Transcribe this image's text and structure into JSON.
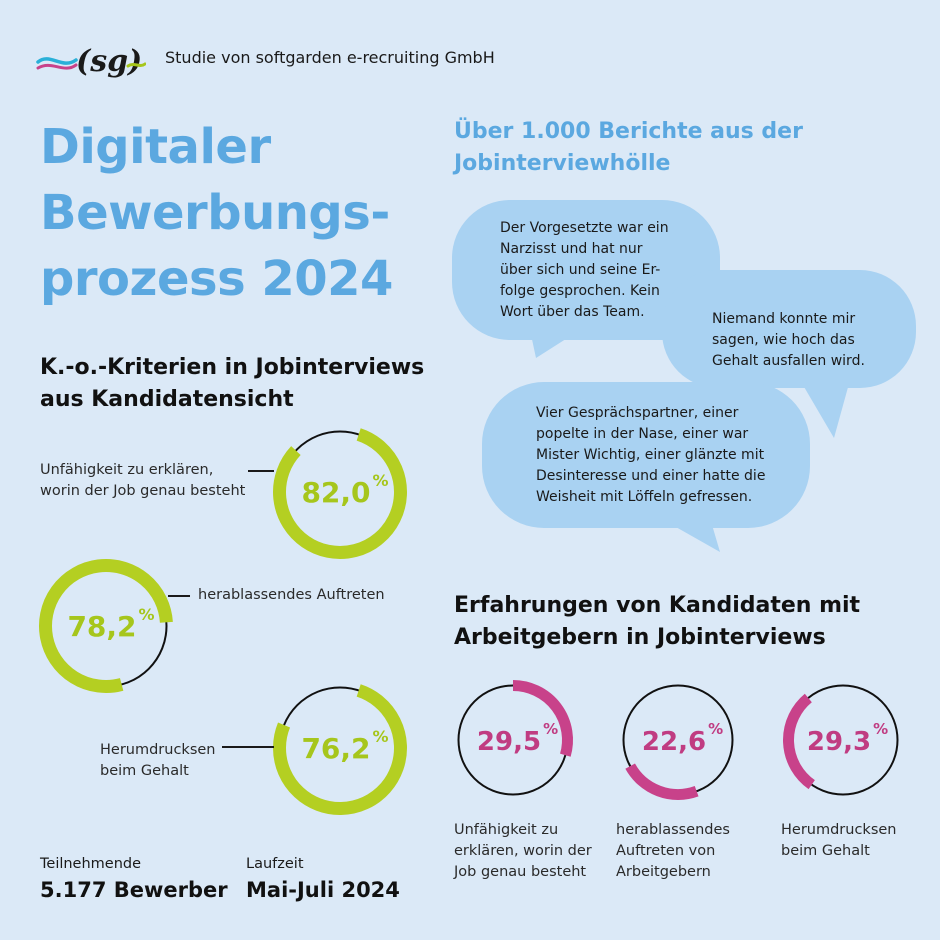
{
  "brand": {
    "logo_text": "(sg)",
    "subtitle": "Studie von softgarden e-recruiting GmbH"
  },
  "title_lines": [
    "Digitaler",
    "Bewerbungs-",
    "prozess 2024"
  ],
  "reports_heading_lines": [
    "Über 1.000 Berichte aus der",
    "Jobinterviewhölle"
  ],
  "quotes": [
    {
      "lines": [
        "Der Vorgesetzte war ein",
        "Narzisst und hat nur",
        "über sich und seine Er-",
        "folge gesprochen. Kein",
        "Wort über das Team."
      ]
    },
    {
      "lines": [
        "Niemand konnte mir",
        "sagen, wie hoch das",
        "Gehalt ausfallen wird."
      ]
    },
    {
      "lines": [
        "Vier Gesprächspartner, einer",
        "popelte in der Nase, einer war",
        "Mister Wichtig, einer glänzte mit",
        "Desinteresse und einer hatte die",
        "Weisheit mit Löffeln gefressen."
      ]
    }
  ],
  "ko_heading_lines": [
    "K.-o.-Kriterien in Jobinterviews",
    "aus Kandidatensicht"
  ],
  "exp_heading_lines": [
    "Erfahrungen von Kandidaten mit",
    "Arbeitgebern in Jobinterviews"
  ],
  "meta": {
    "participants_label": "Teilnehmende",
    "participants_value": "5.177 Bewerber",
    "period_label": "Laufzeit",
    "period_value": "Mai-Juli 2024"
  },
  "colors": {
    "green": "#b4cf22",
    "pink": "#c8428a",
    "blue_heading": "#5ba8e0",
    "bubble": "#a9d2f2"
  },
  "chart_data": [
    {
      "type": "pie",
      "title": "K.-o.-Kriterien in Jobinterviews aus Kandidatensicht",
      "unit": "%",
      "categories": [
        {
          "label_lines": [
            "Unfähigkeit zu erklären,",
            "worin der Job genau besteht"
          ],
          "value": 82.0,
          "display": "82,0"
        },
        {
          "label_lines": [
            "herablassendes Auftreten"
          ],
          "value": 78.2,
          "display": "78,2"
        },
        {
          "label_lines": [
            "Herumdrucksen",
            "beim Gehalt"
          ],
          "value": 76.2,
          "display": "76,2"
        }
      ]
    },
    {
      "type": "pie",
      "title": "Erfahrungen von Kandidaten mit Arbeitgebern in Jobinterviews",
      "unit": "%",
      "categories": [
        {
          "label_lines": [
            "Unfähigkeit zu",
            "erklären, worin der",
            "Job genau besteht"
          ],
          "value": 29.5,
          "display": "29,5"
        },
        {
          "label_lines": [
            "herablassendes",
            "Auftreten von",
            "Arbeitgebern"
          ],
          "value": 22.6,
          "display": "22,6"
        },
        {
          "label_lines": [
            "Herumdrucksen",
            "beim Gehalt"
          ],
          "value": 29.3,
          "display": "29,3"
        }
      ]
    }
  ]
}
